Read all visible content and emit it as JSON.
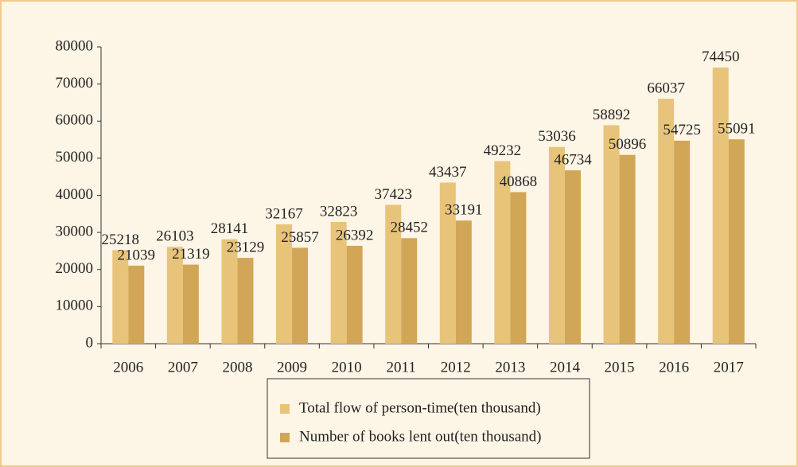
{
  "chart_data": {
    "type": "bar",
    "categories": [
      "2006",
      "2007",
      "2008",
      "2009",
      "2010",
      "2011",
      "2012",
      "2013",
      "2014",
      "2015",
      "2016",
      "2017"
    ],
    "series": [
      {
        "name": "Total flow of person-time(ten thousand)",
        "color": "#e8c47b",
        "values": [
          25218,
          26103,
          28141,
          32167,
          32823,
          37423,
          43437,
          49232,
          53036,
          58892,
          66037,
          74450
        ]
      },
      {
        "name": "Number of books lent out(ten thousand)",
        "color": "#d2a657",
        "values": [
          21039,
          21319,
          23129,
          25857,
          26392,
          28452,
          33191,
          40868,
          46734,
          50896,
          54725,
          55091
        ]
      }
    ],
    "ylim": [
      0,
      80000
    ],
    "yticks": [
      0,
      10000,
      20000,
      30000,
      40000,
      50000,
      60000,
      70000,
      80000
    ],
    "grid": false,
    "legend": "bottom"
  }
}
